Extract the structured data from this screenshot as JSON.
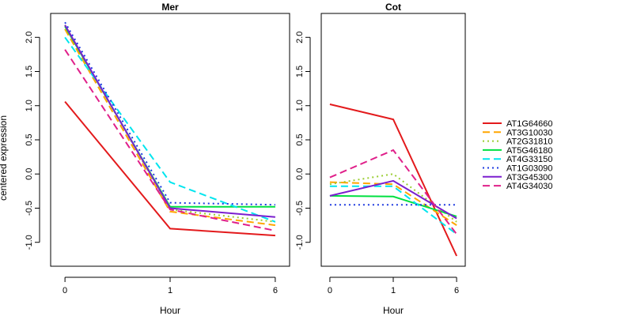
{
  "chart_data": {
    "type": "line",
    "ylabel": "centered expression",
    "xlabel": "Hour",
    "x_categories": [
      "0",
      "1",
      "6"
    ],
    "ylim": [
      -1.35,
      2.35
    ],
    "yticks": [
      2.0,
      1.5,
      1.0,
      0.5,
      0.0,
      -0.5,
      -1.0
    ],
    "ytick_labels": [
      "2.0",
      "1.5",
      "1.0",
      "0.5",
      "0.0",
      "-0.5",
      "-1.0"
    ],
    "legend_position": "right",
    "grid": false,
    "panels": [
      {
        "title": "Mer",
        "series": [
          {
            "name": "AT1G64660",
            "values": [
              1.06,
              -0.8,
              -0.9
            ]
          },
          {
            "name": "AT3G10030",
            "values": [
              2.12,
              -0.55,
              -0.75
            ]
          },
          {
            "name": "AT2G31810",
            "values": [
              2.18,
              -0.52,
              -0.7
            ]
          },
          {
            "name": "AT5G46180",
            "values": [
              2.16,
              -0.48,
              -0.48
            ]
          },
          {
            "name": "AT4G33150",
            "values": [
              2.0,
              -0.12,
              -0.7
            ]
          },
          {
            "name": "AT1G03090",
            "values": [
              2.22,
              -0.42,
              -0.45
            ]
          },
          {
            "name": "AT3G45300",
            "values": [
              2.18,
              -0.5,
              -0.63
            ]
          },
          {
            "name": "AT4G34030",
            "values": [
              1.82,
              -0.52,
              -0.83
            ]
          }
        ]
      },
      {
        "title": "Cot",
        "series": [
          {
            "name": "AT1G64660",
            "values": [
              1.02,
              0.8,
              -1.2
            ]
          },
          {
            "name": "AT3G10030",
            "values": [
              -0.12,
              -0.15,
              -0.75
            ]
          },
          {
            "name": "AT2G31810",
            "values": [
              -0.15,
              0.0,
              -0.7
            ]
          },
          {
            "name": "AT5G46180",
            "values": [
              -0.32,
              -0.33,
              -0.62
            ]
          },
          {
            "name": "AT4G33150",
            "values": [
              -0.18,
              -0.18,
              -0.88
            ]
          },
          {
            "name": "AT1G03090",
            "values": [
              -0.45,
              -0.45,
              -0.45
            ]
          },
          {
            "name": "AT3G45300",
            "values": [
              -0.32,
              -0.1,
              -0.65
            ]
          },
          {
            "name": "AT4G34030",
            "values": [
              -0.05,
              0.35,
              -0.88
            ]
          }
        ]
      }
    ],
    "series_styles": [
      {
        "name": "AT1G64660",
        "color": "#e31a1c",
        "dash": "solid"
      },
      {
        "name": "AT3G10030",
        "color": "#ffa500",
        "dash": "longdash"
      },
      {
        "name": "AT2G31810",
        "color": "#9acd32",
        "dash": "dotted"
      },
      {
        "name": "AT5G46180",
        "color": "#00e040",
        "dash": "solid"
      },
      {
        "name": "AT4G33150",
        "color": "#00e5ee",
        "dash": "longdash"
      },
      {
        "name": "AT1G03090",
        "color": "#1c39e0",
        "dash": "dotted"
      },
      {
        "name": "AT3G45300",
        "color": "#7b1fcf",
        "dash": "solid"
      },
      {
        "name": "AT4G34030",
        "color": "#e0208a",
        "dash": "longdash"
      }
    ]
  }
}
